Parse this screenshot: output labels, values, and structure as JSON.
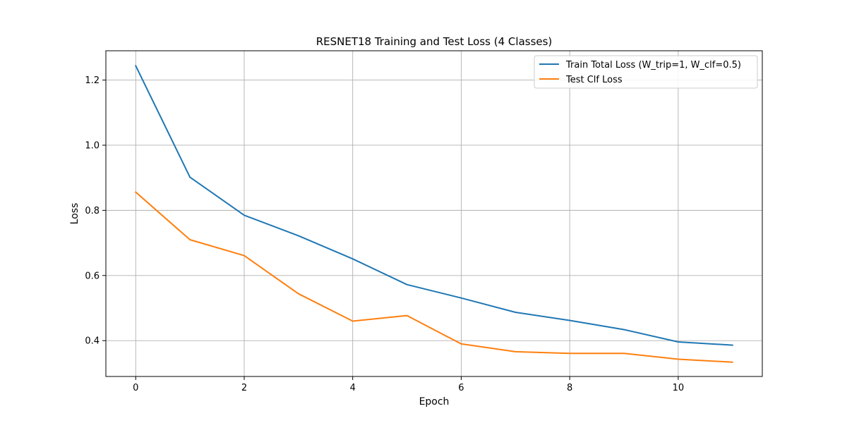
{
  "chart_data": {
    "type": "line",
    "title": "RESNET18 Training and Test Loss (4 Classes)",
    "xlabel": "Epoch",
    "ylabel": "Loss",
    "xlim": [
      -0.55,
      11.55
    ],
    "ylim": [
      0.29,
      1.29
    ],
    "xticks": [
      0,
      2,
      4,
      6,
      8,
      10
    ],
    "yticks": [
      0.4,
      0.6,
      0.8,
      1.0,
      1.2
    ],
    "xtick_labels": [
      "0",
      "2",
      "4",
      "6",
      "8",
      "10"
    ],
    "ytick_labels": [
      "0.4",
      "0.6",
      "0.8",
      "1.0",
      "1.2"
    ],
    "grid": true,
    "legend_position": "top-right",
    "x": [
      0,
      1,
      2,
      3,
      4,
      5,
      6,
      7,
      8,
      9,
      10,
      11
    ],
    "series": [
      {
        "name": "Train Total Loss (W_trip=1, W_clf=0.5)",
        "color": "#1f77b4",
        "values": [
          1.244,
          0.902,
          0.785,
          0.722,
          0.651,
          0.572,
          0.531,
          0.487,
          0.462,
          0.434,
          0.396,
          0.386
        ]
      },
      {
        "name": "Test Clf Loss",
        "color": "#ff7f0e",
        "values": [
          0.856,
          0.71,
          0.661,
          0.544,
          0.46,
          0.477,
          0.39,
          0.366,
          0.361,
          0.361,
          0.343,
          0.334
        ]
      }
    ]
  }
}
